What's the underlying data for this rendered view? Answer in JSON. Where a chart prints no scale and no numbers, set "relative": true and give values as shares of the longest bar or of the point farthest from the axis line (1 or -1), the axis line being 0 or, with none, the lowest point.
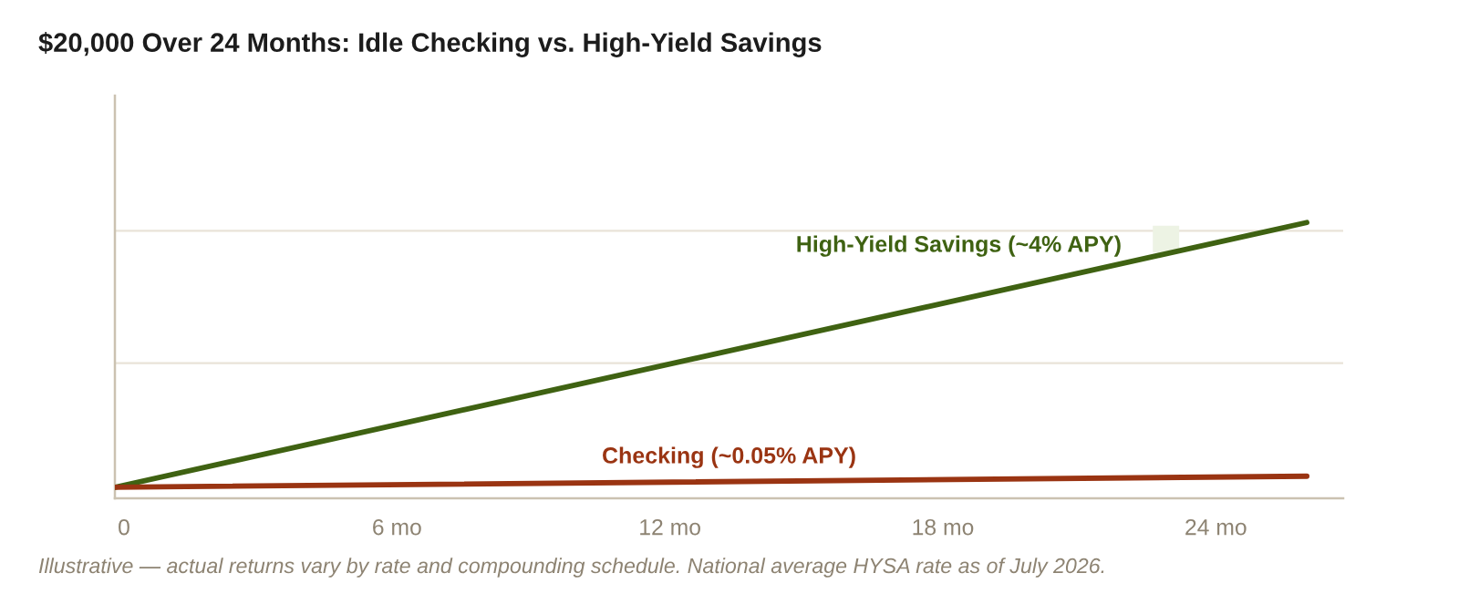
{
  "chart_data": {
    "type": "line",
    "title": "$20,000 Over 24 Months: Idle Checking vs. High-Yield Savings",
    "x": [
      -0.2,
      26
    ],
    "xlim": [
      -0.2,
      26.8
    ],
    "xticks": [
      0,
      {
        "value": 6,
        "label": "6 mo"
      },
      {
        "value": 12,
        "label": "12 mo"
      },
      {
        "value": 18,
        "label": "18 mo"
      },
      {
        "value": 24,
        "label": "24 mo"
      }
    ],
    "relative": true,
    "tick_labels": "x",
    "line_style": "solid",
    "ref_lines": [
      {
        "axis": "y",
        "value": 0.49,
        "color": "#e9e3d8"
      },
      {
        "axis": "y",
        "value": 0.97,
        "color": "#e9e3d8"
      }
    ],
    "series": [
      {
        "name": "High-Yield Savings (~4% APY)",
        "color": "#3f6212",
        "values": [
          0.04,
          1
        ]
      },
      {
        "name": "Checking (~0.05% APY)",
        "color": "#9a3412",
        "values": [
          0.04,
          0.08
        ]
      }
    ],
    "annotations": [
      "Illustrative — actual returns vary by rate and compounding schedule. National average HYSA rate as of July 2026."
    ]
  }
}
